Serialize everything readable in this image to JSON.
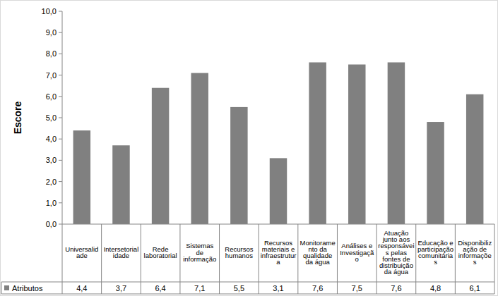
{
  "chart_data": {
    "type": "bar",
    "y_label": "Escore",
    "categories": [
      "Universalidade",
      "Intersetorialidade",
      "Rede laboratorial",
      "Sistemas de informação",
      "Recursos humanos",
      "Recursos materiais e infraestrutura",
      "Monitoramento da qualidade da água",
      "Análises e Investigação",
      "Atuação junto aos responsáveis pelas fontes de distribuição da água",
      "Educação e participação comunitárias",
      "Disponibilização de informações"
    ],
    "series": [
      {
        "name": "Atributos",
        "color": "#808080",
        "values": [
          4.4,
          3.7,
          6.4,
          7.1,
          5.5,
          3.1,
          7.6,
          7.5,
          7.6,
          4.8,
          6.1
        ],
        "value_labels": [
          "4,4",
          "3,7",
          "6,4",
          "7,1",
          "5,5",
          "3,1",
          "7,6",
          "7,5",
          "7,6",
          "4,8",
          "6,1"
        ]
      }
    ],
    "ylim": [
      0,
      10
    ],
    "yticks": [
      {
        "value": 0,
        "label": "0,0"
      },
      {
        "value": 1,
        "label": "1,0"
      },
      {
        "value": 2,
        "label": "2,0"
      },
      {
        "value": 3,
        "label": "3,0"
      },
      {
        "value": 4,
        "label": "4,0"
      },
      {
        "value": 5,
        "label": "5,0"
      },
      {
        "value": 6,
        "label": "6,0"
      },
      {
        "value": 7,
        "label": "7,0"
      },
      {
        "value": 8,
        "label": "8,0"
      },
      {
        "value": 9,
        "label": "9,0"
      },
      {
        "value": 10,
        "label": "10,0"
      }
    ],
    "grid": false
  }
}
